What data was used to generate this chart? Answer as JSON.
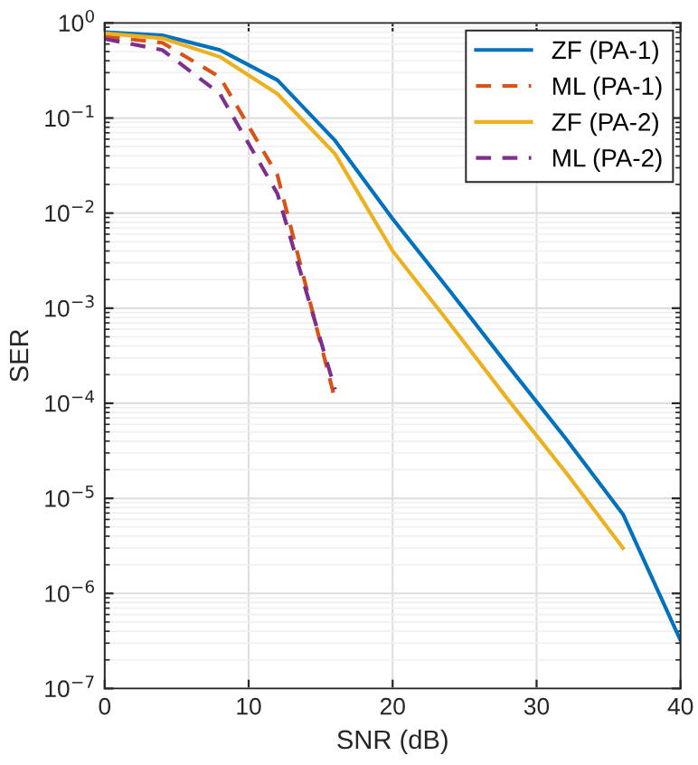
{
  "chart_data": {
    "type": "line",
    "xlabel": "SNR (dB)",
    "ylabel": "SER",
    "log": "y",
    "x": [
      0,
      4,
      8,
      12,
      16,
      20,
      24,
      28,
      32,
      36,
      40
    ],
    "xlim": [
      0,
      40
    ],
    "xticks": [
      0,
      10,
      20,
      30,
      40
    ],
    "ylim": [
      1e-07,
      1
    ],
    "yticks": [
      {
        "value": 1e-07,
        "label": "10$^{−7}$"
      },
      {
        "value": 1e-06,
        "label": "10$^{−6}$"
      },
      {
        "value": 1e-05,
        "label": "10$^{−5}$"
      },
      {
        "value": 0.0001,
        "label": "10$^{−4}$"
      },
      {
        "value": 0.001,
        "label": "10$^{−3}$"
      },
      {
        "value": 0.01,
        "label": "10$^{−2}$"
      },
      {
        "value": 0.1,
        "label": "10$^{−1}$"
      },
      {
        "value": 1,
        "label": "10$^{0}$"
      }
    ],
    "grid": true,
    "legend": "top right",
    "marker": "none",
    "series": [
      {
        "name": "ZF (PA-1)",
        "color": "#0072bd",
        "line_style": "solid",
        "values": [
          0.8,
          0.74,
          0.52,
          0.25,
          0.058,
          0.0087,
          0.0015,
          0.00025,
          4.3e-05,
          6.8e-06,
          3.2e-07
        ]
      },
      {
        "name": "ML (PA-1)",
        "color": "#d95319",
        "line_style": "dashed",
        "values": [
          0.72,
          0.62,
          0.27,
          0.025,
          0.00011,
          null,
          null,
          null,
          null,
          null,
          null
        ]
      },
      {
        "name": "ZF (PA-2)",
        "color": "#edb120",
        "line_style": "solid",
        "values": [
          0.78,
          0.69,
          0.44,
          0.18,
          0.042,
          0.004,
          0.00068,
          0.00011,
          1.9e-05,
          3e-06,
          null
        ]
      },
      {
        "name": "ML (PA-2)",
        "color": "#7e2f8e",
        "line_style": "dashed",
        "values": [
          0.68,
          0.52,
          0.18,
          0.016,
          0.00014,
          null,
          null,
          null,
          null,
          null,
          null
        ]
      }
    ]
  }
}
